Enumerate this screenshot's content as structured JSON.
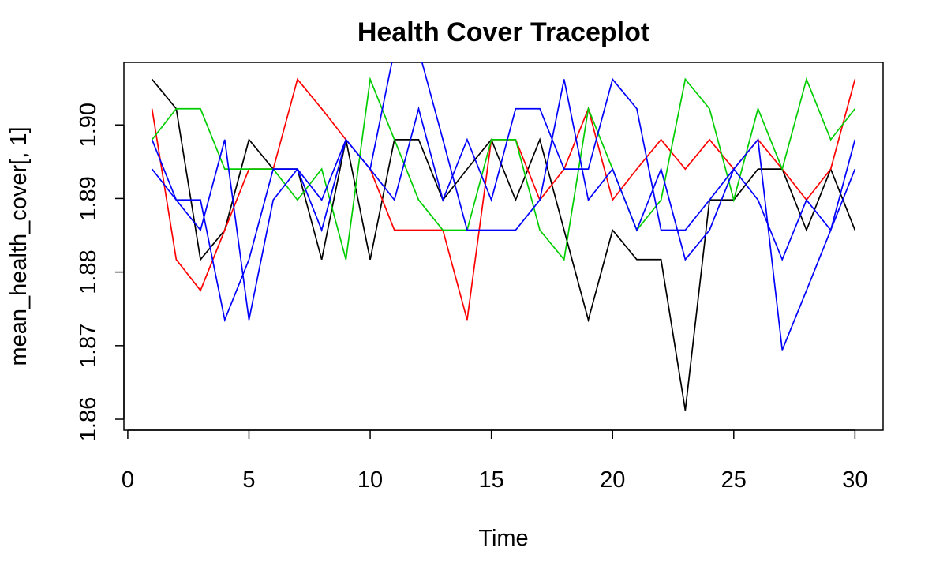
{
  "chart_data": {
    "type": "line",
    "title": "Health Cover Traceplot",
    "xlabel": "Time",
    "ylabel": "mean_health_cover[, 1]",
    "xlim": [
      -0.16,
      31.16
    ],
    "ylim": [
      1.8585,
      1.9085
    ],
    "x_ticks": [
      0,
      5,
      10,
      15,
      20,
      25,
      30
    ],
    "x_tick_labels": [
      "0",
      "5",
      "10",
      "15",
      "20",
      "25",
      "30"
    ],
    "y_ticks": [
      1.86,
      1.87,
      1.88,
      1.89,
      1.9
    ],
    "y_tick_labels": [
      "1.86",
      "1.87",
      "1.88",
      "1.89",
      "1.90"
    ],
    "grid": false,
    "legend": "none",
    "x": [
      1,
      2,
      3,
      4,
      5,
      6,
      7,
      8,
      9,
      10,
      11,
      12,
      13,
      14,
      15,
      16,
      17,
      18,
      19,
      20,
      21,
      22,
      23,
      24,
      25,
      26,
      27,
      28,
      29,
      30
    ],
    "series": [
      {
        "color": "#000000",
        "values": [
          1.9062,
          1.9022,
          1.8817,
          1.8857,
          1.898,
          1.894,
          1.894,
          1.8817,
          1.898,
          1.8817,
          1.898,
          1.898,
          1.8898,
          1.894,
          1.898,
          1.8898,
          1.898,
          1.8857,
          1.8735,
          1.8857,
          1.8817,
          1.8817,
          1.8612,
          1.8898,
          1.8898,
          1.894,
          1.894,
          1.8857,
          1.894,
          1.8857
        ]
      },
      {
        "color": "#ff0000",
        "values": [
          1.9022,
          1.8817,
          1.8775,
          1.8857,
          1.894,
          1.894,
          1.9062,
          1.9022,
          1.898,
          1.894,
          1.8857,
          1.8857,
          1.8857,
          1.8735,
          1.898,
          1.898,
          1.8898,
          1.894,
          1.9022,
          1.8898,
          1.894,
          1.898,
          1.894,
          1.898,
          1.894,
          1.898,
          1.894,
          1.8898,
          1.894,
          1.9062
        ]
      },
      {
        "color": "#00cd00",
        "values": [
          1.898,
          1.9022,
          1.9022,
          1.894,
          1.894,
          1.894,
          1.8898,
          1.894,
          1.8817,
          1.9062,
          1.898,
          1.8898,
          1.8857,
          1.8857,
          1.898,
          1.898,
          1.8857,
          1.8817,
          1.9022,
          1.894,
          1.8857,
          1.8898,
          1.9062,
          1.9022,
          1.8898,
          1.9022,
          1.894,
          1.9062,
          1.898,
          1.9022
        ]
      },
      {
        "color": "#0000ff",
        "values": [
          1.898,
          1.8898,
          1.8898,
          1.8735,
          1.8817,
          1.894,
          1.894,
          1.8898,
          1.898,
          1.894,
          1.8898,
          1.9022,
          1.8898,
          1.898,
          1.8898,
          1.9022,
          1.9022,
          1.894,
          1.894,
          1.9062,
          1.9022,
          1.8857,
          1.8857,
          1.8898,
          1.894,
          1.8898,
          1.8817,
          1.8898,
          1.8857,
          1.894
        ]
      },
      {
        "color": "#0000ff",
        "values": [
          1.894,
          1.8898,
          1.8857,
          1.898,
          1.8735,
          1.8898,
          1.894,
          1.8857,
          1.898,
          1.894,
          1.9102,
          1.9102,
          1.898,
          1.8857,
          1.8857,
          1.8857,
          1.8898,
          1.9062,
          1.8898,
          1.894,
          1.8857,
          1.894,
          1.8817,
          1.8857,
          1.894,
          1.898,
          1.8694,
          1.8775,
          1.8857,
          1.898
        ]
      }
    ]
  }
}
